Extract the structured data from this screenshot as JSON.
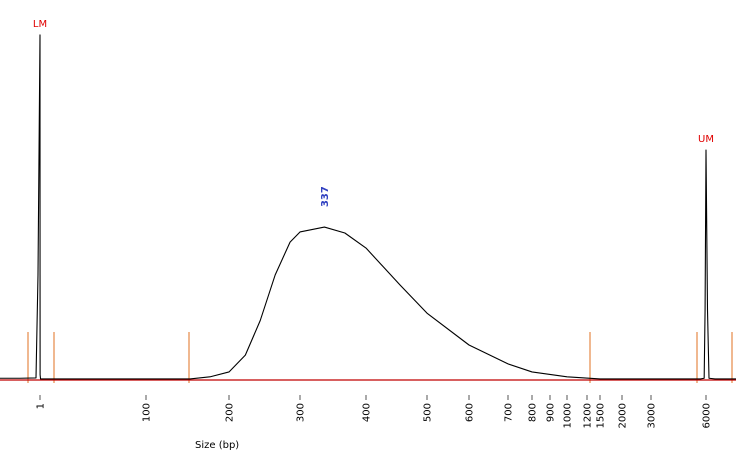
{
  "chart_data": {
    "type": "line",
    "x_label": "Size (bp)",
    "xlim": [
      0,
      7000
    ],
    "ylim": [
      0,
      100
    ],
    "xticks": [
      1,
      100,
      200,
      300,
      400,
      500,
      600,
      700,
      800,
      900,
      1000,
      1200,
      1500,
      2000,
      3000,
      6000
    ],
    "series": [
      {
        "color": "#000000",
        "x": [
          0,
          0.5,
          0.9,
          0.95,
          1,
          1.05,
          1.1,
          1.5,
          10,
          60,
          100,
          153,
          177,
          200,
          223,
          244,
          265,
          286,
          300,
          337,
          368,
          400,
          456,
          500,
          600,
          700,
          800,
          1000,
          1500,
          3000,
          5700,
          5900,
          5950,
          6000,
          6050,
          6100,
          6300,
          7000
        ],
        "values": [
          0.5,
          0.5,
          0.6,
          30,
          98.6,
          30,
          1.5,
          0.3,
          0.3,
          0.3,
          0.3,
          0.3,
          0.9,
          2.3,
          7.1,
          17,
          30,
          39.4,
          42.3,
          43.7,
          42,
          37.7,
          27.1,
          19.1,
          10,
          4.6,
          2.3,
          0.9,
          0.3,
          0.3,
          0.3,
          0.5,
          20,
          65.7,
          20,
          0.5,
          0.3,
          0.3
        ]
      }
    ],
    "markers": [
      {
        "text": "LM",
        "x": 1,
        "color": "#e00000"
      },
      {
        "text": "UM",
        "x": 6000,
        "color": "#e00000"
      }
    ],
    "peak_labels": [
      {
        "x": 337,
        "color": "#3040c0"
      }
    ],
    "baseline_color": "#c00000"
  }
}
